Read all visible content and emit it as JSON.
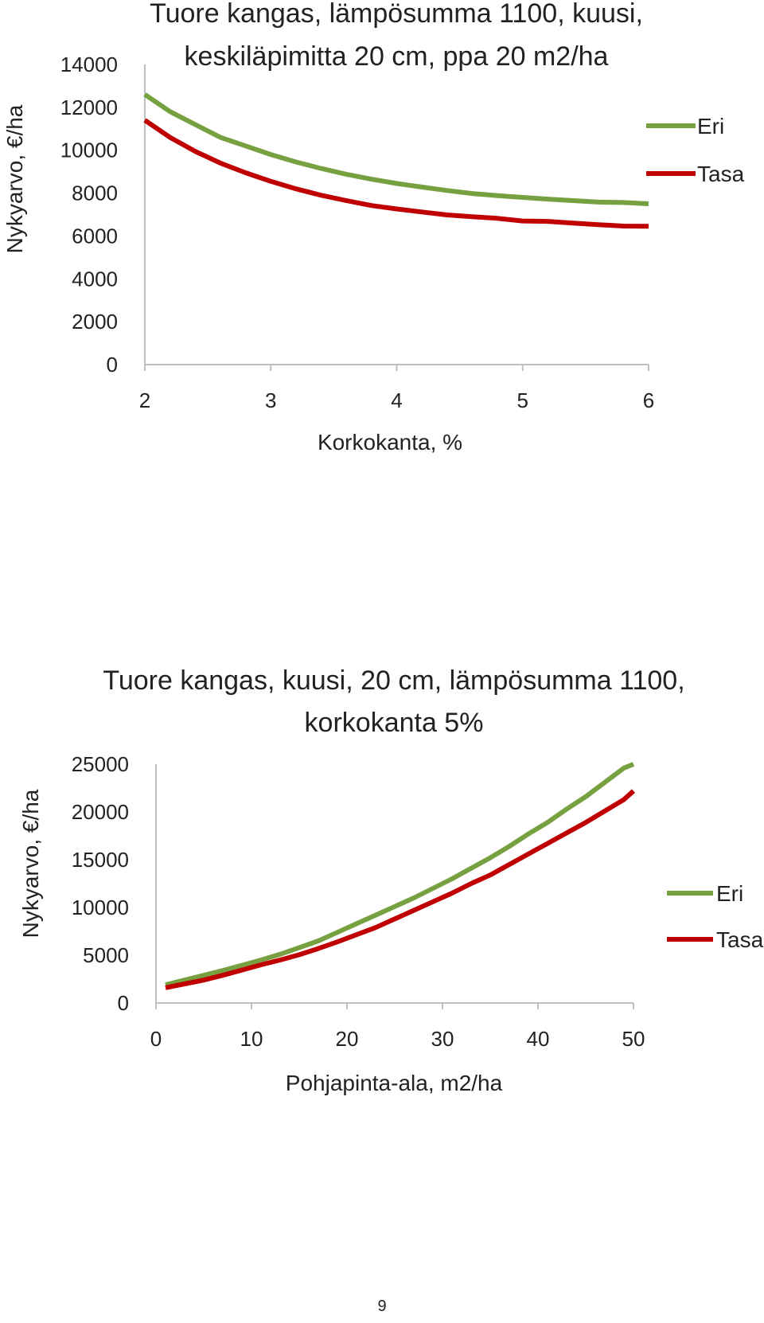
{
  "chart_data": [
    {
      "type": "line",
      "title_lines": [
        "Tuore kangas, lämpösumma  1100,  kuusi,",
        "keskiläpimitta  20 cm, ppa 20 m2/ha"
      ],
      "xlabel": "Korkokanta, %",
      "ylabel": "Nykyarvo, €/ha",
      "xlim": [
        2,
        6
      ],
      "ylim": [
        0,
        14000
      ],
      "xticks": [
        "2",
        "3",
        "4",
        "5",
        "6"
      ],
      "yticks": [
        "0",
        "2000",
        "4000",
        "6000",
        "8000",
        "10000",
        "12000",
        "14000"
      ],
      "x": [
        2.0,
        2.2,
        2.4,
        2.6,
        2.8,
        3.0,
        3.2,
        3.4,
        3.6,
        3.8,
        4.0,
        4.2,
        4.4,
        4.6,
        4.8,
        5.0,
        5.2,
        5.4,
        5.6,
        5.8,
        6.0
      ],
      "series": [
        {
          "name": "Eri",
          "color": "#77a040",
          "values": [
            12600,
            11800,
            11200,
            10600,
            10200,
            9800,
            9450,
            9150,
            8880,
            8650,
            8450,
            8280,
            8120,
            7980,
            7880,
            7800,
            7720,
            7650,
            7580,
            7560,
            7500
          ]
        },
        {
          "name": "Tasa",
          "color": "#c00000",
          "values": [
            11400,
            10600,
            9950,
            9400,
            8950,
            8550,
            8200,
            7900,
            7650,
            7420,
            7260,
            7120,
            6980,
            6900,
            6820,
            6700,
            6680,
            6600,
            6530,
            6460,
            6450
          ]
        }
      ],
      "legend_position": "right"
    },
    {
      "type": "line",
      "title_lines": [
        "Tuore kangas, kuusi, 20 cm, lämpösumma  1100,",
        "korkokanta 5%"
      ],
      "xlabel": "Pohjapinta-ala, m2/ha",
      "ylabel": "Nykyarvo, €/ha",
      "xlim": [
        0,
        50
      ],
      "ylim": [
        0,
        25000
      ],
      "xticks": [
        "0",
        "10",
        "20",
        "30",
        "40",
        "50"
      ],
      "yticks": [
        "0",
        "5000",
        "10000",
        "15000",
        "20000",
        "25000"
      ],
      "x": [
        1,
        3,
        5,
        7,
        9,
        11,
        13,
        15,
        17,
        19,
        21,
        23,
        25,
        27,
        29,
        31,
        33,
        35,
        37,
        39,
        41,
        43,
        45,
        47,
        49,
        50
      ],
      "series": [
        {
          "name": "Eri",
          "color": "#77a040",
          "values": [
            1900,
            2400,
            2900,
            3400,
            3950,
            4500,
            5100,
            5800,
            6500,
            7400,
            8300,
            9200,
            10100,
            11000,
            12000,
            13000,
            14100,
            15200,
            16400,
            17700,
            18900,
            20300,
            21600,
            23100,
            24600,
            25000
          ]
        },
        {
          "name": "Tasa",
          "color": "#c00000",
          "values": [
            1600,
            2000,
            2400,
            2900,
            3450,
            4000,
            4500,
            5050,
            5700,
            6400,
            7150,
            7900,
            8800,
            9700,
            10600,
            11500,
            12500,
            13400,
            14500,
            15600,
            16700,
            17800,
            18900,
            20100,
            21300,
            22200
          ]
        }
      ],
      "legend_position": "right"
    }
  ],
  "page_number": "9"
}
